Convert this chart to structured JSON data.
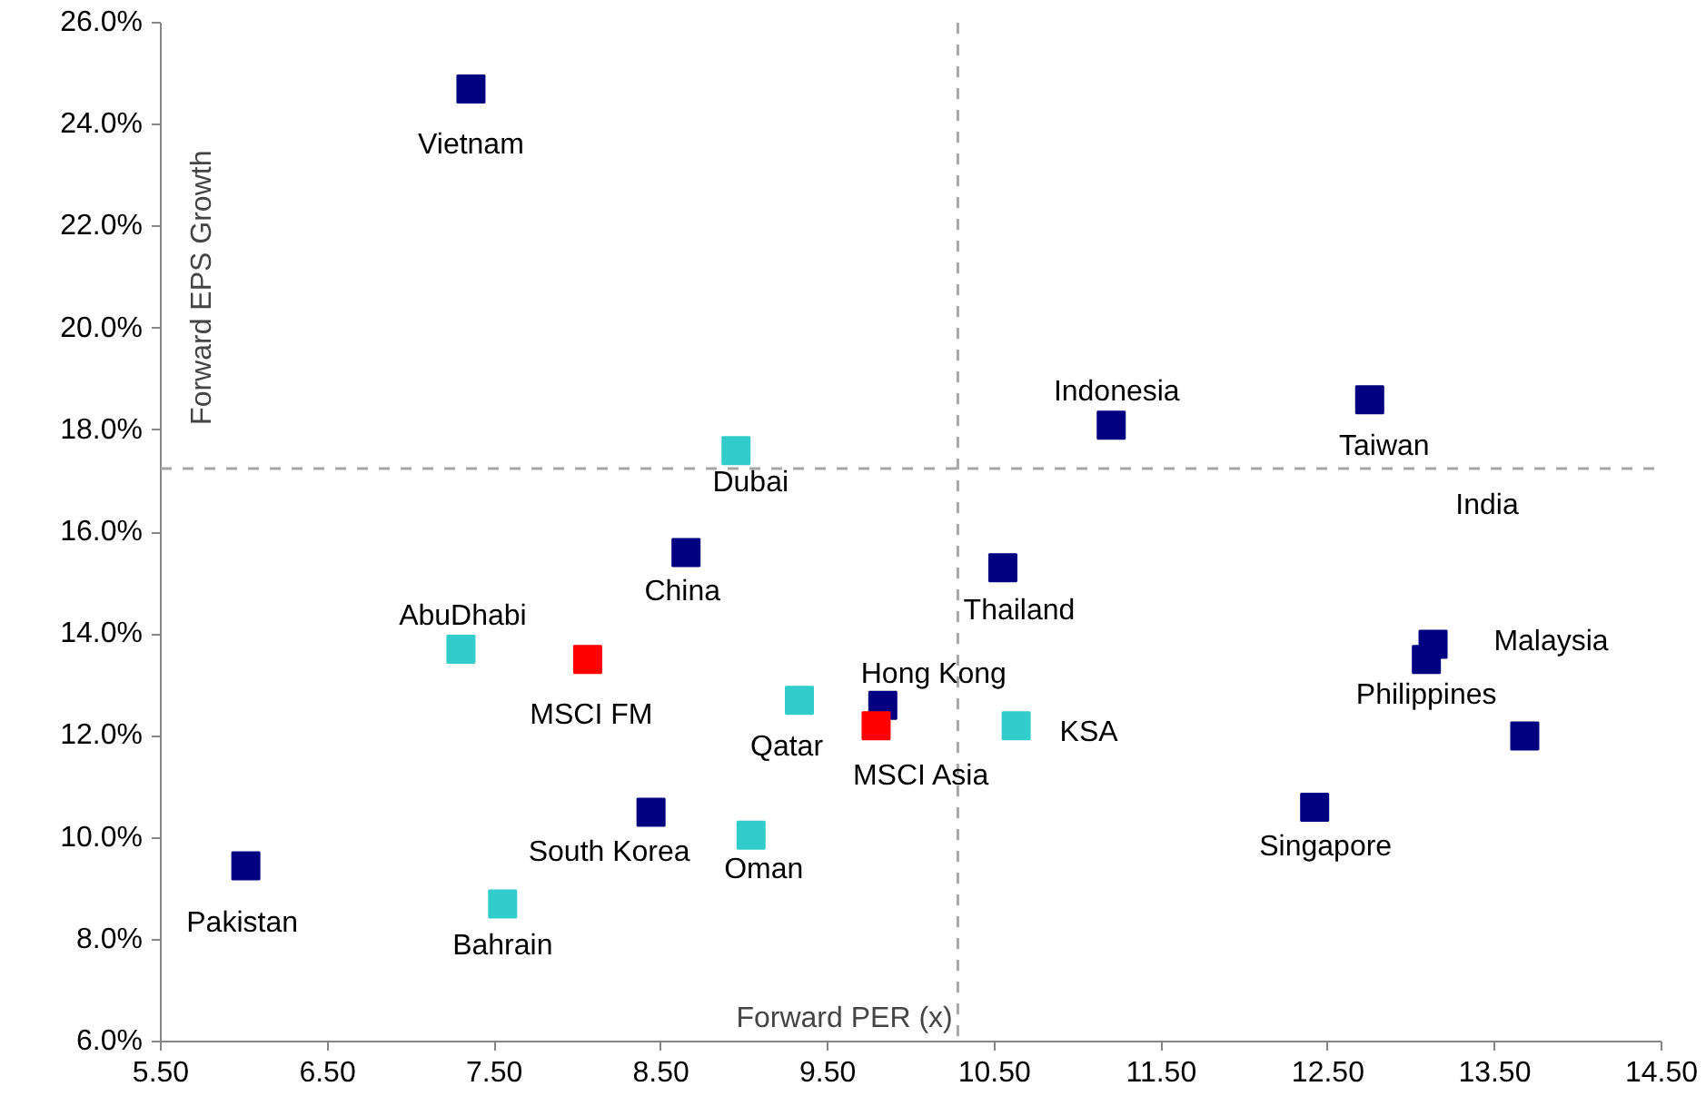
{
  "chart_data": {
    "type": "scatter",
    "xlabel": "Forward PER (x)",
    "ylabel": "Forward EPS Growth",
    "marker": "square",
    "grid": false,
    "xlim": [
      5.5,
      14.5
    ],
    "ylim": [
      6.0,
      26.0
    ],
    "xticks": [
      {
        "value": 5.5,
        "label": "5.50"
      },
      {
        "value": 6.5,
        "label": "6.50"
      },
      {
        "value": 7.5,
        "label": "7.50"
      },
      {
        "value": 8.5,
        "label": "8.50"
      },
      {
        "value": 9.5,
        "label": "9.50"
      },
      {
        "value": 10.5,
        "label": "10.50"
      },
      {
        "value": 11.5,
        "label": "11.50"
      },
      {
        "value": 12.5,
        "label": "12.50"
      },
      {
        "value": 13.5,
        "label": "13.50"
      },
      {
        "value": 14.5,
        "label": "14.50"
      }
    ],
    "yticks": [
      {
        "value": 6,
        "label": "6.0%"
      },
      {
        "value": 8,
        "label": "8.0%"
      },
      {
        "value": 10,
        "label": "10.0%"
      },
      {
        "value": 12,
        "label": "12.0%"
      },
      {
        "value": 14,
        "label": "14.0%"
      },
      {
        "value": 16,
        "label": "16.0%"
      },
      {
        "value": 18,
        "label": "18.0%"
      },
      {
        "value": 20,
        "label": "20.0%"
      },
      {
        "value": 22,
        "label": "22.0%"
      },
      {
        "value": 24,
        "label": "24.0%"
      },
      {
        "value": 26,
        "label": "26.0%"
      }
    ],
    "series": [
      {
        "color": "#000080",
        "x": [
          7.36,
          11.2,
          12.75,
          8.65,
          10.55,
          13.13,
          13.09,
          13.68,
          9.83,
          8.44,
          12.42,
          6.01
        ],
        "values": [
          24.7,
          18.1,
          18.6,
          15.6,
          15.3,
          13.8,
          13.5,
          12.0,
          12.6,
          10.5,
          10.6,
          9.45
        ]
      },
      {
        "color": "#33cccc",
        "x": [
          8.95,
          7.3,
          9.33,
          10.63,
          9.04,
          7.55
        ],
        "values": [
          17.6,
          13.7,
          12.7,
          12.2,
          10.05,
          8.7
        ]
      },
      {
        "color": "#ff0000",
        "x": [
          8.06,
          9.79
        ],
        "values": [
          13.5,
          12.2
        ]
      }
    ],
    "ref_lines": [
      {
        "axis": "x",
        "value": 10.28,
        "color": "#a6a6a6",
        "line_style": "dashed"
      },
      {
        "axis": "y",
        "value": 17.25,
        "color": "#a6a6a6",
        "line_style": "dashed"
      }
    ],
    "annotations": [
      {
        "text": "Vietnam",
        "x": 7.36,
        "y": 24.7
      },
      {
        "text": "Indonesia",
        "x": 11.2,
        "y": 18.1
      },
      {
        "text": "Taiwan",
        "x": 12.75,
        "y": 18.6
      },
      "India",
      {
        "text": "Dubai",
        "x": 8.95,
        "y": 17.6
      },
      {
        "text": "China",
        "x": 8.65,
        "y": 15.6
      },
      {
        "text": "Thailand",
        "x": 10.55,
        "y": 15.3
      },
      {
        "text": "AbuDhabi",
        "x": 7.3,
        "y": 13.7
      },
      {
        "text": "Malaysia",
        "x": 13.13,
        "y": 13.8
      },
      {
        "text": "Philippines",
        "x": 13.09,
        "y": 13.5
      },
      {
        "text": "MSCI FM",
        "x": 8.06,
        "y": 13.5
      },
      {
        "text": "Hong Kong",
        "x": 9.83,
        "y": 12.6
      },
      {
        "text": "Qatar",
        "x": 9.33,
        "y": 12.7
      },
      {
        "text": "KSA",
        "x": 10.63,
        "y": 12.2
      },
      {
        "text": "MSCI Asia",
        "x": 9.79,
        "y": 12.2
      },
      {
        "text": "South Korea",
        "x": 8.44,
        "y": 10.5
      },
      {
        "text": "Oman",
        "x": 9.04,
        "y": 10.05
      },
      {
        "text": "Singapore",
        "x": 12.42,
        "y": 10.6
      },
      {
        "text": "Pakistan",
        "x": 6.01,
        "y": 9.45
      },
      {
        "text": "Bahrain",
        "x": 7.55,
        "y": 8.7
      }
    ]
  }
}
